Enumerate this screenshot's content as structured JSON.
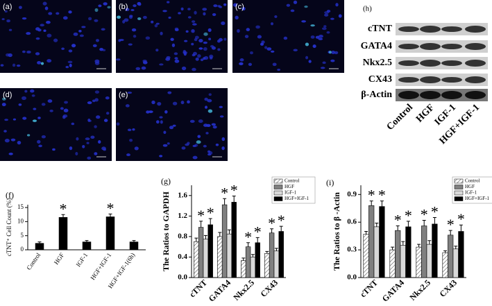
{
  "figure": {
    "panels": [
      {
        "label": "(a)"
      },
      {
        "label": "(b)"
      },
      {
        "label": "(c)"
      },
      {
        "label": "(d)"
      },
      {
        "label": "(e)"
      }
    ]
  },
  "blot": {
    "label": "(h)",
    "rows": [
      "cTNT",
      "GATA4",
      "Nkx2.5",
      "CX43",
      "β-Actin"
    ],
    "lanes": [
      "Control",
      "HGF",
      "IGF-1",
      "HGF+IGF-1"
    ]
  },
  "chart_data": [
    {
      "type": "bar",
      "title": "(f)",
      "y_label": "cTNT⁺ Cell Count (%)",
      "categories": [
        "Control",
        "HGF",
        "IGF-1",
        "HGF+IGF-1",
        "HGF+IGF-1(6h)"
      ],
      "values": [
        2.3,
        11.5,
        2.8,
        11.7,
        2.8
      ],
      "errors": [
        0.5,
        1.0,
        0.5,
        1.0,
        0.5
      ],
      "markers": [
        null,
        "*",
        null,
        "*",
        null
      ],
      "color": "#000000",
      "ylim": [
        0,
        16
      ],
      "yticks": [
        0,
        5,
        10,
        15
      ]
    },
    {
      "type": "bar",
      "title": "(g)",
      "y_label": "The Ratios to GAPDH",
      "categories": [
        "cTNT",
        "GATA4",
        "Nkx2.5",
        "CX43"
      ],
      "series": [
        {
          "name": "Control",
          "color": "#ffffff",
          "hatch": true,
          "values": [
            0.7,
            0.8,
            0.33,
            0.47
          ],
          "errors": [
            0.07,
            0.08,
            0.05,
            0.04
          ]
        },
        {
          "name": "HGF",
          "color": "#808080",
          "values": [
            0.98,
            1.42,
            0.6,
            0.87
          ],
          "errors": [
            0.12,
            0.12,
            0.08,
            0.08
          ],
          "markers": [
            "*",
            "*",
            "*",
            "*"
          ]
        },
        {
          "name": "IGF-1",
          "color": "#d9d9d9",
          "values": [
            0.75,
            0.85,
            0.4,
            0.52
          ],
          "errors": [
            0.07,
            0.08,
            0.05,
            0.05
          ]
        },
        {
          "name": "HGF+IGF-1",
          "color": "#000000",
          "values": [
            1.03,
            1.47,
            0.68,
            0.9
          ],
          "errors": [
            0.12,
            0.12,
            0.1,
            0.1
          ],
          "markers": [
            "*",
            "*",
            "*",
            "*"
          ]
        }
      ],
      "ylim": [
        0,
        1.8
      ],
      "yticks": [
        {
          "value": 0,
          "label": "0.0"
        },
        0.4,
        0.8,
        1.2,
        1.6
      ],
      "legend": "upper right"
    },
    {
      "type": "bar",
      "title": "(i)",
      "y_label": "The Ratios to β -Actin",
      "categories": [
        "cTNT",
        "GATA4",
        "Nkx2.5",
        "CX43"
      ],
      "series": [
        {
          "name": "Control",
          "color": "#ffffff",
          "hatch": true,
          "values": [
            0.47,
            0.3,
            0.33,
            0.27
          ],
          "errors": [
            0.03,
            0.03,
            0.03,
            0.02
          ]
        },
        {
          "name": "HGF",
          "color": "#808080",
          "values": [
            0.78,
            0.51,
            0.56,
            0.46
          ],
          "errors": [
            0.05,
            0.05,
            0.06,
            0.05
          ],
          "markers": [
            "*",
            "*",
            "*",
            "*"
          ]
        },
        {
          "name": "IGF-1",
          "color": "#d9d9d9",
          "values": [
            0.55,
            0.35,
            0.36,
            0.31
          ],
          "errors": [
            0.04,
            0.04,
            0.04,
            0.03
          ]
        },
        {
          "name": "HGF+IGF-1",
          "color": "#000000",
          "values": [
            0.77,
            0.55,
            0.58,
            0.5
          ],
          "errors": [
            0.06,
            0.06,
            0.07,
            0.07
          ],
          "markers": [
            "*",
            "*",
            "*",
            "*"
          ]
        }
      ],
      "ylim": [
        0,
        1.0
      ],
      "yticks": [
        {
          "value": 0,
          "label": "0.0"
        },
        0.3,
        0.6,
        0.9
      ],
      "legend": "upper right"
    }
  ]
}
